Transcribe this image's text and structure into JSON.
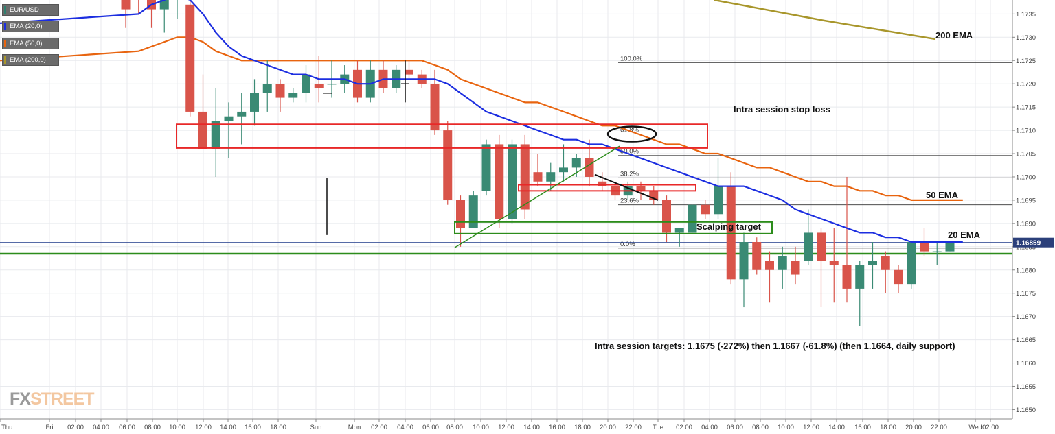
{
  "legend": [
    {
      "label": "EUR/USD",
      "color": "#2f7f6f"
    },
    {
      "label": "EMA (20,0)",
      "color": "#1c2ee0"
    },
    {
      "label": "EMA (50,0)",
      "color": "#e8640f"
    },
    {
      "label": "EMA (200,0)",
      "color": "#a8962b"
    }
  ],
  "watermark": {
    "part1": "FX",
    "part2": "STREET"
  },
  "colors": {
    "up": "#3a8a74",
    "down": "#d9544a",
    "ema20": "#1c2ee0",
    "ema50": "#e8640f",
    "ema200": "#a8962b",
    "support": "#2c8c1b",
    "grid": "#e8eaee",
    "box_red": "#e82828",
    "box_green": "#2c8c1b"
  },
  "chart_data": {
    "type": "candlestick",
    "symbol": "EUR/USD",
    "ylim": [
      1.1648,
      1.1738
    ],
    "yticks": [
      1.165,
      1.1655,
      1.166,
      1.1665,
      1.167,
      1.1675,
      1.168,
      1.1685,
      1.169,
      1.1695,
      1.17,
      1.1705,
      1.171,
      1.1715,
      1.172,
      1.1725,
      1.173,
      1.1735
    ],
    "current_price": "1.16859",
    "xticks": [
      "Thu",
      "Fri",
      "02:00",
      "04:00",
      "06:00",
      "08:00",
      "10:00",
      "12:00",
      "14:00",
      "16:00",
      "18:00",
      "Sun",
      "Mon",
      "02:00",
      "04:00",
      "06:00",
      "08:00",
      "10:00",
      "12:00",
      "14:00",
      "16:00",
      "18:00",
      "20:00",
      "22:00",
      "Tue",
      "02:00",
      "04:00",
      "06:00",
      "08:00",
      "10:00",
      "12:00",
      "14:00",
      "16:00",
      "18:00",
      "20:00",
      "22:00",
      "Wed",
      "02:00"
    ],
    "candles": [
      {
        "o": 1.1742,
        "h": 1.1748,
        "l": 1.1732,
        "c": 1.1736
      },
      {
        "o": 1.174,
        "h": 1.1746,
        "l": 1.1735,
        "c": 1.1738
      },
      {
        "o": 1.1738,
        "h": 1.1745,
        "l": 1.1732,
        "c": 1.1736
      },
      {
        "o": 1.1736,
        "h": 1.1742,
        "l": 1.1731,
        "c": 1.1739
      },
      {
        "o": 1.1739,
        "h": 1.1744,
        "l": 1.1734,
        "c": 1.174
      },
      {
        "o": 1.1737,
        "h": 1.1739,
        "l": 1.1713,
        "c": 1.1714
      },
      {
        "o": 1.1714,
        "h": 1.1722,
        "l": 1.1706,
        "c": 1.1706
      },
      {
        "o": 1.1706,
        "h": 1.1719,
        "l": 1.17,
        "c": 1.1712
      },
      {
        "o": 1.1712,
        "h": 1.1716,
        "l": 1.1704,
        "c": 1.1713
      },
      {
        "o": 1.1713,
        "h": 1.1718,
        "l": 1.1707,
        "c": 1.1714
      },
      {
        "o": 1.1714,
        "h": 1.1721,
        "l": 1.1711,
        "c": 1.1718
      },
      {
        "o": 1.1718,
        "h": 1.1725,
        "l": 1.1714,
        "c": 1.172
      },
      {
        "o": 1.172,
        "h": 1.1721,
        "l": 1.1714,
        "c": 1.1717
      },
      {
        "o": 1.1717,
        "h": 1.1719,
        "l": 1.1716,
        "c": 1.1718
      },
      {
        "o": 1.1718,
        "h": 1.1724,
        "l": 1.1716,
        "c": 1.1722
      },
      {
        "o": 1.172,
        "h": 1.1726,
        "l": 1.1716,
        "c": 1.1719
      },
      {
        "o": 1.172,
        "h": 1.1725,
        "l": 1.1717,
        "c": 1.172
      },
      {
        "o": 1.172,
        "h": 1.1724,
        "l": 1.1718,
        "c": 1.1722
      },
      {
        "o": 1.1723,
        "h": 1.1725,
        "l": 1.1716,
        "c": 1.1717
      },
      {
        "o": 1.1717,
        "h": 1.1725,
        "l": 1.1716,
        "c": 1.1723
      },
      {
        "o": 1.1723,
        "h": 1.1725,
        "l": 1.1718,
        "c": 1.1719
      },
      {
        "o": 1.1719,
        "h": 1.1724,
        "l": 1.1718,
        "c": 1.1723
      },
      {
        "o": 1.1723,
        "h": 1.1725,
        "l": 1.1721,
        "c": 1.1722
      },
      {
        "o": 1.1722,
        "h": 1.1723,
        "l": 1.1719,
        "c": 1.172
      },
      {
        "o": 1.172,
        "h": 1.1723,
        "l": 1.1709,
        "c": 1.171
      },
      {
        "o": 1.171,
        "h": 1.1712,
        "l": 1.1694,
        "c": 1.1695
      },
      {
        "o": 1.1695,
        "h": 1.1696,
        "l": 1.1685,
        "c": 1.1689
      },
      {
        "o": 1.1689,
        "h": 1.1697,
        "l": 1.1689,
        "c": 1.1696
      },
      {
        "o": 1.1697,
        "h": 1.1708,
        "l": 1.1696,
        "c": 1.1707
      },
      {
        "o": 1.1707,
        "h": 1.1709,
        "l": 1.1689,
        "c": 1.1691
      },
      {
        "o": 1.1691,
        "h": 1.1708,
        "l": 1.169,
        "c": 1.1707
      },
      {
        "o": 1.1707,
        "h": 1.1709,
        "l": 1.1691,
        "c": 1.1693
      },
      {
        "o": 1.1701,
        "h": 1.1705,
        "l": 1.1698,
        "c": 1.1699
      },
      {
        "o": 1.1699,
        "h": 1.1703,
        "l": 1.1697,
        "c": 1.1701
      },
      {
        "o": 1.1701,
        "h": 1.1707,
        "l": 1.1699,
        "c": 1.1702
      },
      {
        "o": 1.1702,
        "h": 1.1705,
        "l": 1.17,
        "c": 1.1704
      },
      {
        "o": 1.1704,
        "h": 1.1708,
        "l": 1.1698,
        "c": 1.17
      },
      {
        "o": 1.1699,
        "h": 1.1701,
        "l": 1.1697,
        "c": 1.1698
      },
      {
        "o": 1.1698,
        "h": 1.1699,
        "l": 1.1695,
        "c": 1.1696
      },
      {
        "o": 1.1696,
        "h": 1.1699,
        "l": 1.1695,
        "c": 1.1698
      },
      {
        "o": 1.1698,
        "h": 1.1699,
        "l": 1.1695,
        "c": 1.1697
      },
      {
        "o": 1.1697,
        "h": 1.1698,
        "l": 1.1694,
        "c": 1.1695
      },
      {
        "o": 1.1695,
        "h": 1.1696,
        "l": 1.1686,
        "c": 1.1688
      },
      {
        "o": 1.1688,
        "h": 1.1689,
        "l": 1.1685,
        "c": 1.1689
      },
      {
        "o": 1.1688,
        "h": 1.1694,
        "l": 1.1688,
        "c": 1.1694
      },
      {
        "o": 1.1694,
        "h": 1.1695,
        "l": 1.1691,
        "c": 1.1692
      },
      {
        "o": 1.1692,
        "h": 1.1704,
        "l": 1.1691,
        "c": 1.1698
      },
      {
        "o": 1.1698,
        "h": 1.1701,
        "l": 1.1677,
        "c": 1.1678
      },
      {
        "o": 1.1678,
        "h": 1.1688,
        "l": 1.1672,
        "c": 1.1686
      },
      {
        "o": 1.1686,
        "h": 1.1687,
        "l": 1.1679,
        "c": 1.168
      },
      {
        "o": 1.1682,
        "h": 1.1684,
        "l": 1.1673,
        "c": 1.168
      },
      {
        "o": 1.168,
        "h": 1.1685,
        "l": 1.1676,
        "c": 1.1683
      },
      {
        "o": 1.1682,
        "h": 1.1685,
        "l": 1.1677,
        "c": 1.1679
      },
      {
        "o": 1.1682,
        "h": 1.1693,
        "l": 1.1681,
        "c": 1.1688
      },
      {
        "o": 1.1688,
        "h": 1.1689,
        "l": 1.1672,
        "c": 1.1682
      },
      {
        "o": 1.1682,
        "h": 1.1689,
        "l": 1.1673,
        "c": 1.1681
      },
      {
        "o": 1.1681,
        "h": 1.17,
        "l": 1.1673,
        "c": 1.1676
      },
      {
        "o": 1.1676,
        "h": 1.1682,
        "l": 1.1668,
        "c": 1.1681
      },
      {
        "o": 1.1681,
        "h": 1.1686,
        "l": 1.1676,
        "c": 1.1682
      },
      {
        "o": 1.1683,
        "h": 1.1684,
        "l": 1.1675,
        "c": 1.168
      },
      {
        "o": 1.168,
        "h": 1.1681,
        "l": 1.1675,
        "c": 1.1677
      },
      {
        "o": 1.1677,
        "h": 1.1686,
        "l": 1.1676,
        "c": 1.1686
      },
      {
        "o": 1.1686,
        "h": 1.1689,
        "l": 1.1683,
        "c": 1.1684
      },
      {
        "o": 1.1684,
        "h": 1.1686,
        "l": 1.1681,
        "c": 1.1684
      },
      {
        "o": 1.1684,
        "h": 1.1686,
        "l": 1.1684,
        "c": 1.1686
      }
    ],
    "ema20": [
      1.1735,
      1.1737,
      1.1738,
      1.1739,
      1.1738,
      1.1735,
      1.1731,
      1.1728,
      1.1726,
      1.1725,
      1.1724,
      1.1723,
      1.1722,
      1.1722,
      1.1721,
      1.1721,
      1.1721,
      1.172,
      1.172,
      1.1721,
      1.1721,
      1.1721,
      1.1721,
      1.1721,
      1.172,
      1.1718,
      1.1716,
      1.1714,
      1.1713,
      1.1712,
      1.1711,
      1.171,
      1.1709,
      1.1708,
      1.1708,
      1.1707,
      1.1707,
      1.1706,
      1.1705,
      1.1704,
      1.1703,
      1.1702,
      1.1701,
      1.17,
      1.1699,
      1.1698,
      1.1698,
      1.1698,
      1.1697,
      1.1696,
      1.1695,
      1.1693,
      1.1692,
      1.1691,
      1.169,
      1.1689,
      1.1688,
      1.1688,
      1.1687,
      1.1687,
      1.1686,
      1.1686,
      1.1686,
      1.1686,
      1.1686
    ],
    "ema50": [
      1.1727,
      1.1728,
      1.1729,
      1.173,
      1.173,
      1.1729,
      1.1727,
      1.1726,
      1.1725,
      1.1725,
      1.1725,
      1.1725,
      1.1725,
      1.1725,
      1.1725,
      1.1725,
      1.1725,
      1.1725,
      1.1725,
      1.1725,
      1.1725,
      1.1725,
      1.1725,
      1.1724,
      1.1723,
      1.1721,
      1.172,
      1.1719,
      1.1718,
      1.1717,
      1.1716,
      1.1716,
      1.1715,
      1.1714,
      1.1713,
      1.1712,
      1.1711,
      1.1711,
      1.171,
      1.1709,
      1.1708,
      1.1707,
      1.1707,
      1.1706,
      1.1705,
      1.1705,
      1.1704,
      1.1703,
      1.1702,
      1.1702,
      1.1701,
      1.17,
      1.1699,
      1.1699,
      1.1698,
      1.1698,
      1.1697,
      1.1697,
      1.1696,
      1.1696,
      1.1695,
      1.1695,
      1.1695,
      1.1695,
      1.1695
    ],
    "fib": [
      {
        "label": "100.0%",
        "value": 1.17245
      },
      {
        "label": "61.8%",
        "value": 1.17092
      },
      {
        "label": "50.0%",
        "value": 1.17046
      },
      {
        "label": "38.2%",
        "value": 1.16998
      },
      {
        "label": "23.6%",
        "value": 1.1694
      },
      {
        "label": "0.0%",
        "value": 1.16847
      }
    ],
    "support_level": 1.16835,
    "annotations": {
      "stop_loss": "Intra session stop loss",
      "scalping": "Scalping target",
      "targets": "Intra session targets: 1.1675 (-272%) then 1.1667 (-61.8%) (then 1.1664, daily support)",
      "ema200": "200 EMA",
      "ema50": "50 EMA",
      "ema20": "20 EMA"
    }
  }
}
